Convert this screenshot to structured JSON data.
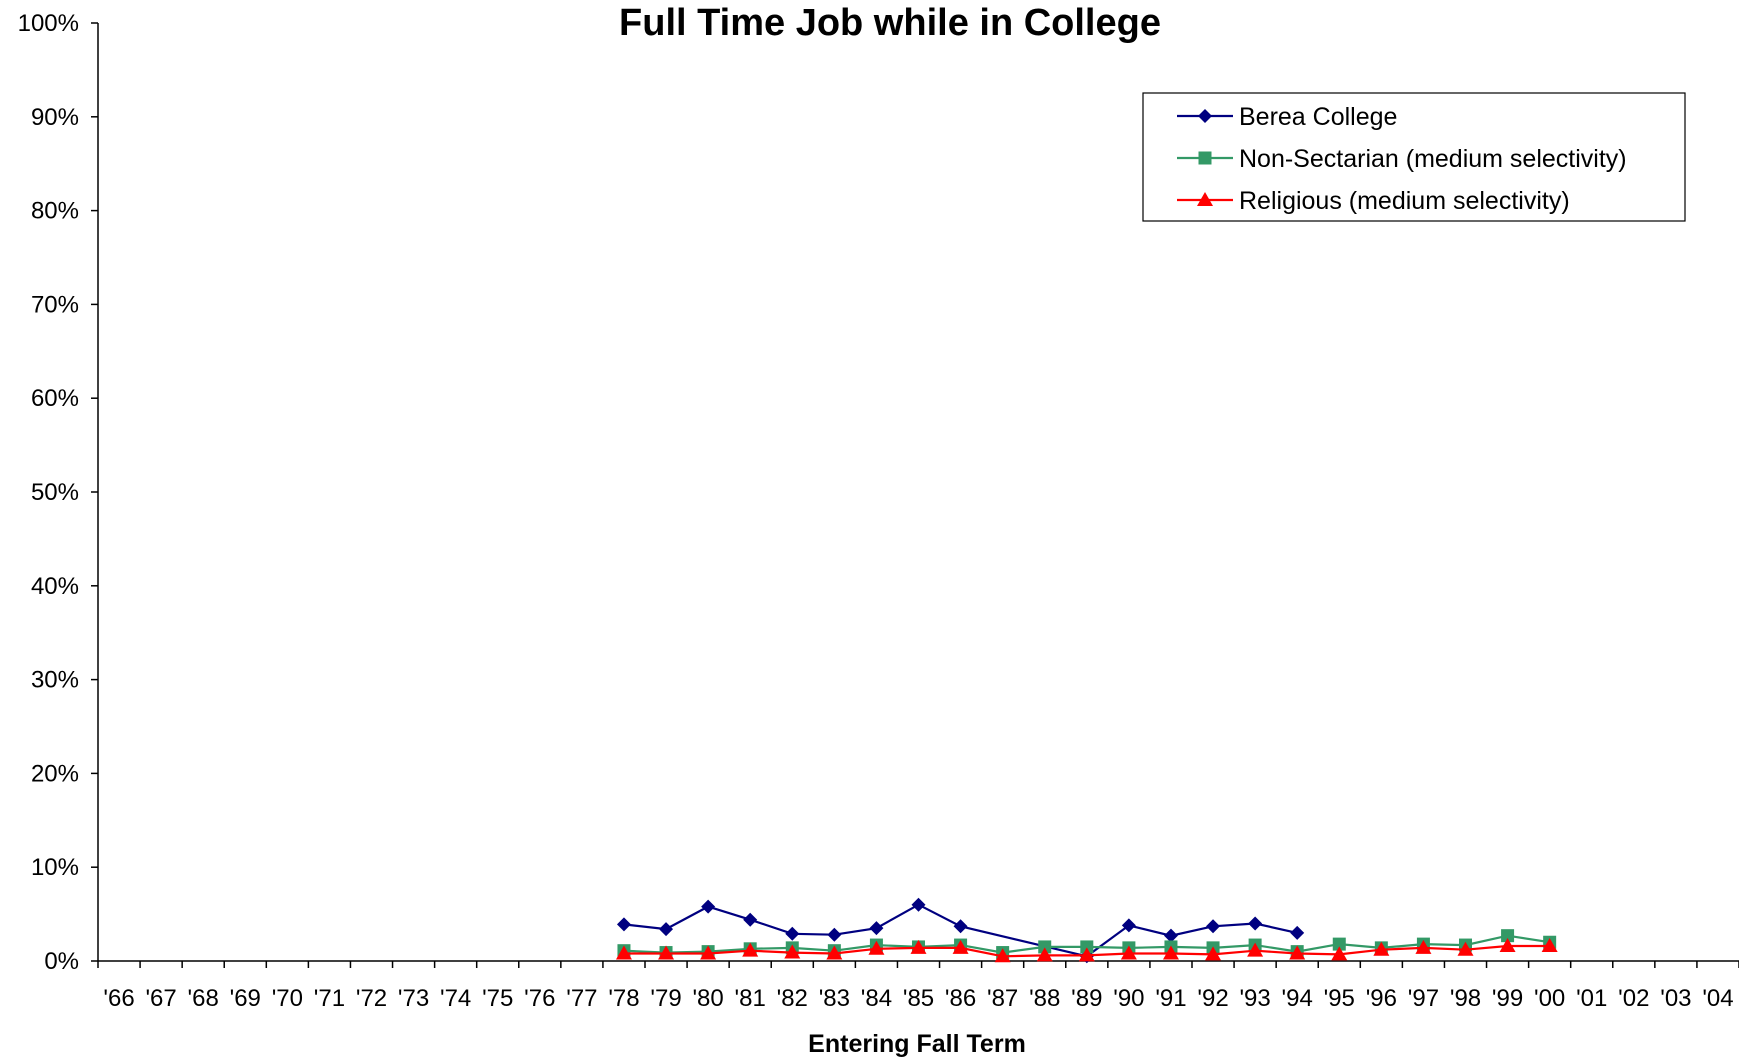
{
  "chart_data": {
    "type": "line",
    "title": "Full Time Job while in College",
    "xlabel": "Entering Fall Term",
    "ylabel": "",
    "ylim": [
      0,
      100
    ],
    "y_ticks": [
      "0%",
      "10%",
      "20%",
      "30%",
      "40%",
      "50%",
      "60%",
      "70%",
      "80%",
      "90%",
      "100%"
    ],
    "categories": [
      "'66",
      "'67",
      "'68",
      "'69",
      "'70",
      "'71",
      "'72",
      "'73",
      "'74",
      "'75",
      "'76",
      "'77",
      "'78",
      "'79",
      "'80",
      "'81",
      "'82",
      "'83",
      "'84",
      "'85",
      "'86",
      "'87",
      "'88",
      "'89",
      "'90",
      "'91",
      "'92",
      "'93",
      "'94",
      "'95",
      "'96",
      "'97",
      "'98",
      "'99",
      "'00",
      "'01",
      "'02",
      "'03",
      "'04"
    ],
    "grid": false,
    "legend_position": "top-right",
    "series": [
      {
        "name": "Berea College",
        "color": "#000080",
        "marker": "diamond",
        "values": [
          null,
          null,
          null,
          null,
          null,
          null,
          null,
          null,
          null,
          null,
          null,
          null,
          3.9,
          3.4,
          5.8,
          4.4,
          2.9,
          2.8,
          3.5,
          6.0,
          3.7,
          null,
          null,
          0.5,
          3.8,
          2.7,
          3.7,
          4.0,
          3.0,
          null,
          null,
          null,
          null,
          null,
          null,
          null,
          null,
          null,
          null
        ]
      },
      {
        "name": "Non-Sectarian (medium selectivity)",
        "color": "#339966",
        "marker": "square",
        "values": [
          null,
          null,
          null,
          null,
          null,
          null,
          null,
          null,
          null,
          null,
          null,
          null,
          1.1,
          0.9,
          1.0,
          1.3,
          1.4,
          1.1,
          1.7,
          1.5,
          1.7,
          0.9,
          1.5,
          1.5,
          1.4,
          1.5,
          1.4,
          1.7,
          1.0,
          1.8,
          1.4,
          1.8,
          1.7,
          2.7,
          2.0,
          null,
          null,
          null,
          null
        ]
      },
      {
        "name": "Religious (medium selectivity)",
        "color": "#ff0000",
        "marker": "triangle",
        "values": [
          null,
          null,
          null,
          null,
          null,
          null,
          null,
          null,
          null,
          null,
          null,
          null,
          0.8,
          0.8,
          0.8,
          1.1,
          0.9,
          0.8,
          1.3,
          1.4,
          1.4,
          0.5,
          0.6,
          0.6,
          0.8,
          0.8,
          0.7,
          1.1,
          0.8,
          0.7,
          1.2,
          1.4,
          1.2,
          1.6,
          1.6,
          null,
          null,
          null,
          null
        ]
      }
    ]
  }
}
